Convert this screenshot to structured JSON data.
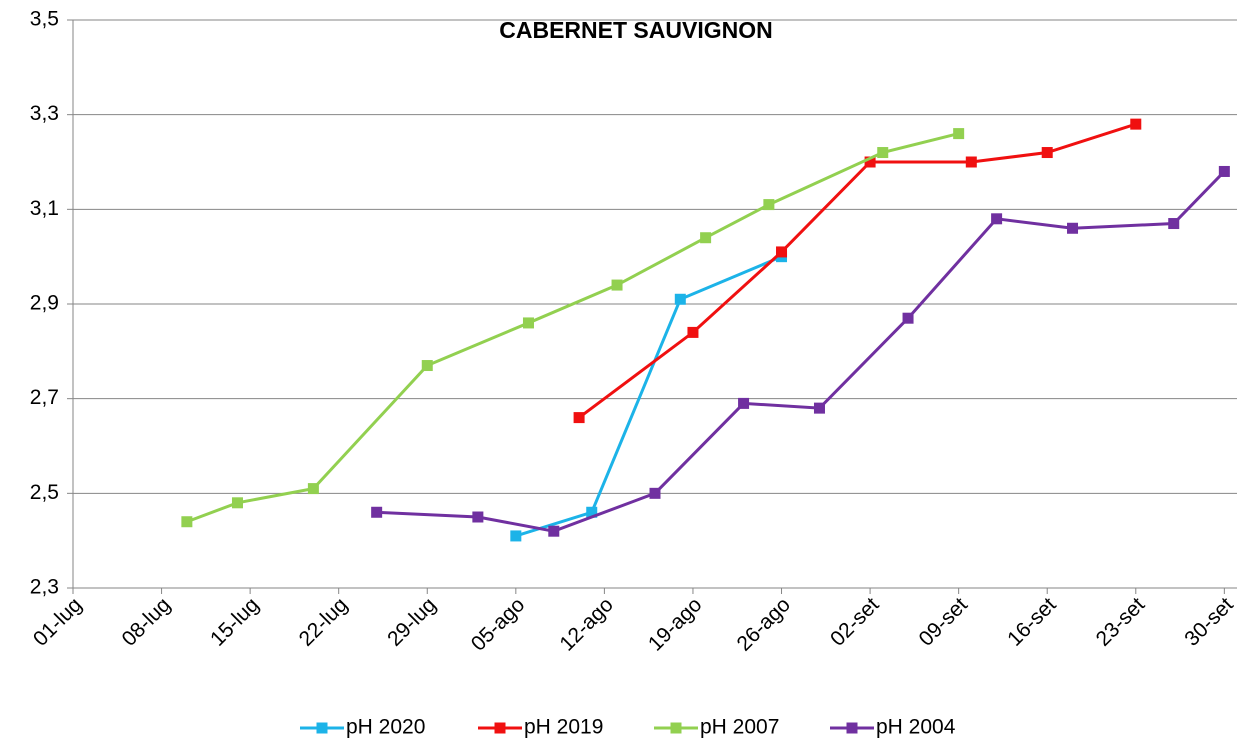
{
  "chart_data": {
    "type": "line",
    "title": "CABERNET SAUVIGNON",
    "xlim": [
      "07-01",
      "10-01"
    ],
    "xticks": [
      {
        "value": "07-01",
        "label": "01-lug"
      },
      {
        "value": "07-08",
        "label": "08-lug"
      },
      {
        "value": "07-15",
        "label": "15-lug"
      },
      {
        "value": "07-22",
        "label": "22-lug"
      },
      {
        "value": "07-29",
        "label": "29-lug"
      },
      {
        "value": "08-05",
        "label": "05-ago"
      },
      {
        "value": "08-12",
        "label": "12-ago"
      },
      {
        "value": "08-19",
        "label": "19-ago"
      },
      {
        "value": "08-26",
        "label": "26-ago"
      },
      {
        "value": "09-02",
        "label": "02-set"
      },
      {
        "value": "09-09",
        "label": "09-set"
      },
      {
        "value": "09-16",
        "label": "16-set"
      },
      {
        "value": "09-23",
        "label": "23-set"
      },
      {
        "value": "09-30",
        "label": "30-set"
      }
    ],
    "ylim": [
      2.3,
      3.5
    ],
    "yticks": [
      {
        "value": 2.3,
        "label": "2,3"
      },
      {
        "value": 2.5,
        "label": "2,5"
      },
      {
        "value": 2.7,
        "label": "2,7"
      },
      {
        "value": 2.9,
        "label": "2,9"
      },
      {
        "value": 3.1,
        "label": "3,1"
      },
      {
        "value": 3.3,
        "label": "3,3"
      },
      {
        "value": 3.5,
        "label": "3,5"
      }
    ],
    "grid": true,
    "series": [
      {
        "name": "pH 2020",
        "color": "#1cb3e8",
        "x": [
          "08-05",
          "08-11",
          "08-18",
          "08-26"
        ],
        "values": [
          2.41,
          2.46,
          2.91,
          3.0
        ]
      },
      {
        "name": "pH 2019",
        "color": "#f01010",
        "x": [
          "08-10",
          "08-19",
          "08-26",
          "09-02",
          "09-10",
          "09-16",
          "09-23"
        ],
        "values": [
          2.66,
          2.84,
          3.01,
          3.2,
          3.2,
          3.22,
          3.28
        ]
      },
      {
        "name": "pH 2007",
        "color": "#92d050",
        "x": [
          "07-10",
          "07-14",
          "07-20",
          "07-29",
          "08-06",
          "08-13",
          "08-20",
          "08-25",
          "09-03",
          "09-09"
        ],
        "values": [
          2.44,
          2.48,
          2.51,
          2.77,
          2.86,
          2.94,
          3.04,
          3.11,
          3.22,
          3.26
        ]
      },
      {
        "name": "pH 2004",
        "color": "#7030a0",
        "x": [
          "07-25",
          "08-02",
          "08-08",
          "08-16",
          "08-23",
          "08-29",
          "09-05",
          "09-12",
          "09-18",
          "09-26",
          "09-30"
        ],
        "values": [
          2.46,
          2.45,
          2.42,
          2.5,
          2.69,
          2.68,
          2.87,
          3.08,
          3.06,
          3.07,
          3.18
        ]
      }
    ]
  }
}
